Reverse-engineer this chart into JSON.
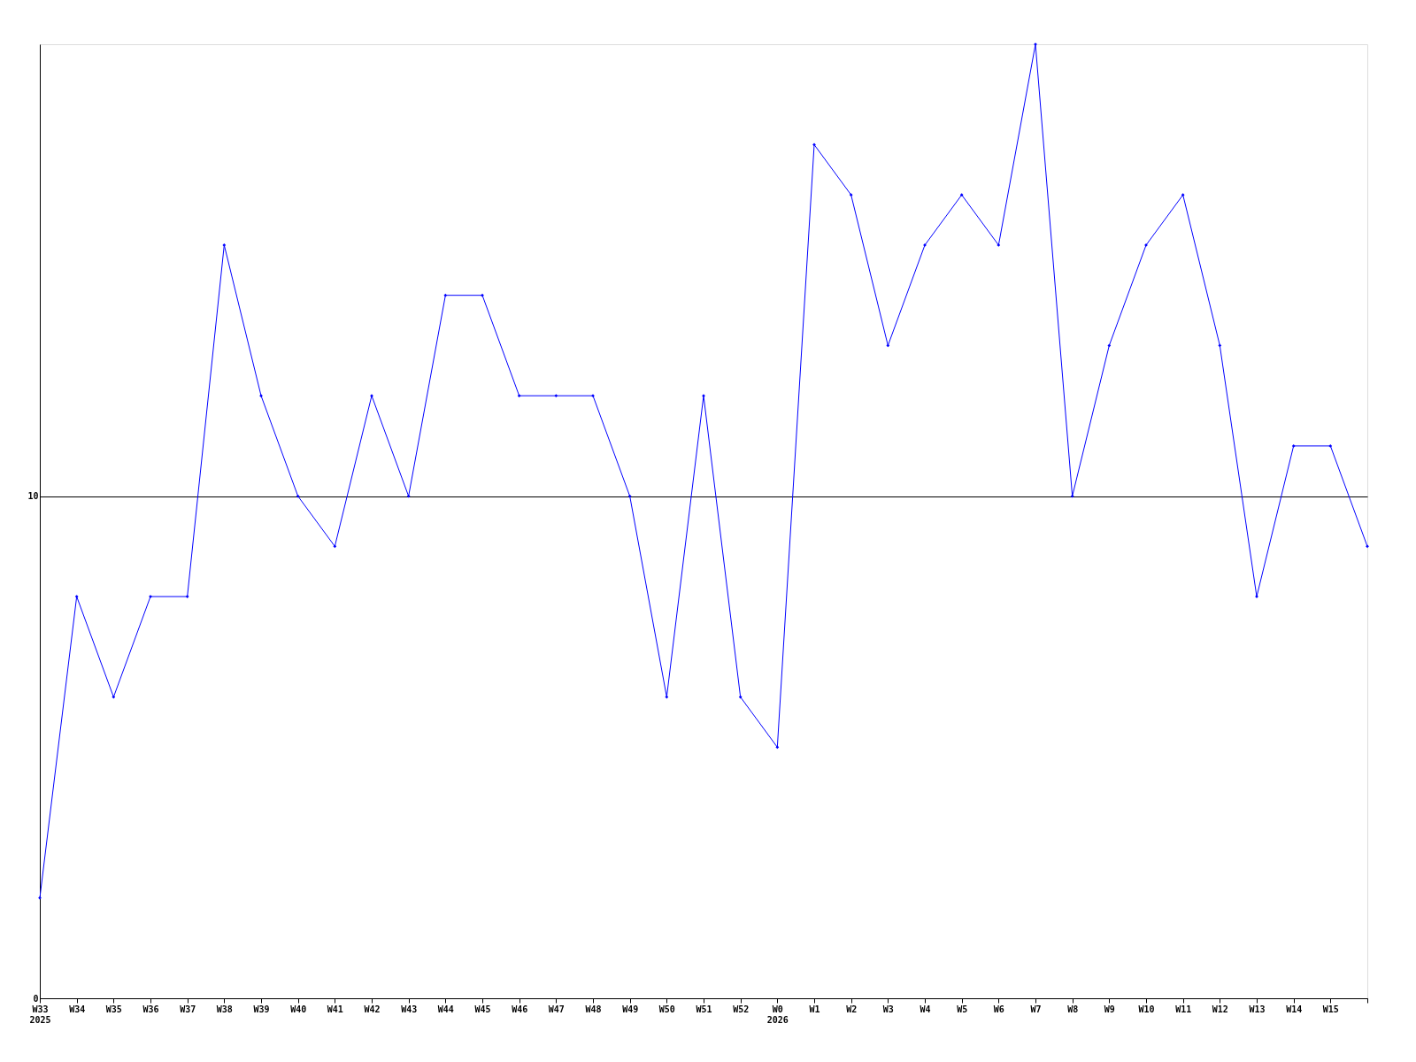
{
  "chart_data": {
    "type": "line",
    "categories": [
      "W33\n2025",
      "W34",
      "W35",
      "W36",
      "W37",
      "W38",
      "W39",
      "W40",
      "W41",
      "W42",
      "W43",
      "W44",
      "W45",
      "W46",
      "W47",
      "W48",
      "W49",
      "W50",
      "W51",
      "W52",
      "W0\n2026",
      "W1",
      "W2",
      "W3",
      "W4",
      "W5",
      "W6",
      "W7",
      "W8",
      "W9",
      "W10",
      "W11",
      "W12",
      "W13",
      "W14",
      "W15",
      null
    ],
    "series": [
      {
        "color": "#0000ff",
        "values": [
          2,
          8,
          6,
          8,
          8,
          15,
          12,
          10,
          9,
          12,
          10,
          14,
          14,
          12,
          12,
          12,
          10,
          6,
          12,
          6,
          5,
          17,
          16,
          13,
          15,
          16,
          15,
          19,
          10,
          13,
          15,
          16,
          13,
          8,
          11,
          11,
          9
        ]
      }
    ],
    "ylim": [
      0,
      19
    ],
    "yticks": [
      0,
      10
    ],
    "grid": "y",
    "legend": false,
    "marker": "diamond",
    "line_style": "solid"
  }
}
